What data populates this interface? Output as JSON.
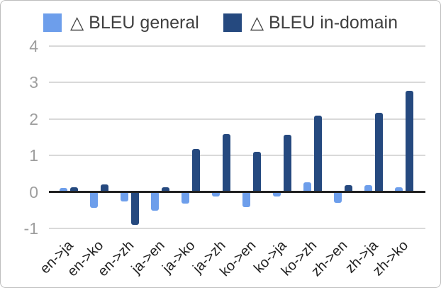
{
  "chart_data": {
    "type": "bar",
    "title": "",
    "categories": [
      "en->ja",
      "en->ko",
      "en->zh",
      "ja->en",
      "ja->ko",
      "ja->zh",
      "ko->en",
      "ko->ja",
      "ko->zh",
      "zh->en",
      "zh->ja",
      "zh->ko"
    ],
    "series": [
      {
        "name": "△ BLEU general",
        "color": "#6d9eeb",
        "values": [
          0.1,
          -0.43,
          -0.26,
          -0.52,
          -0.32,
          -0.13,
          -0.42,
          -0.13,
          0.27,
          -0.3,
          0.18,
          0.12
        ]
      },
      {
        "name": "△ BLEU in-domain",
        "color": "#25497f",
        "values": [
          0.12,
          0.2,
          -0.9,
          0.12,
          1.18,
          1.58,
          1.1,
          1.57,
          2.1,
          0.18,
          2.16,
          2.77
        ]
      }
    ],
    "xlabel": "",
    "ylabel": "",
    "y_ticks": [
      4,
      3,
      2,
      1,
      0,
      -1
    ],
    "ylim": [
      -1,
      4
    ],
    "grid": true,
    "legend_position": "top",
    "colors": {
      "gridline": "#d9d9d9",
      "zero_line": "#212121",
      "y_tick_text": "#9e9e9e",
      "x_tick_text": "#212121",
      "legend_text": "#3f3f3f",
      "background": "#ffffff",
      "border": "#bdbdbd"
    }
  }
}
